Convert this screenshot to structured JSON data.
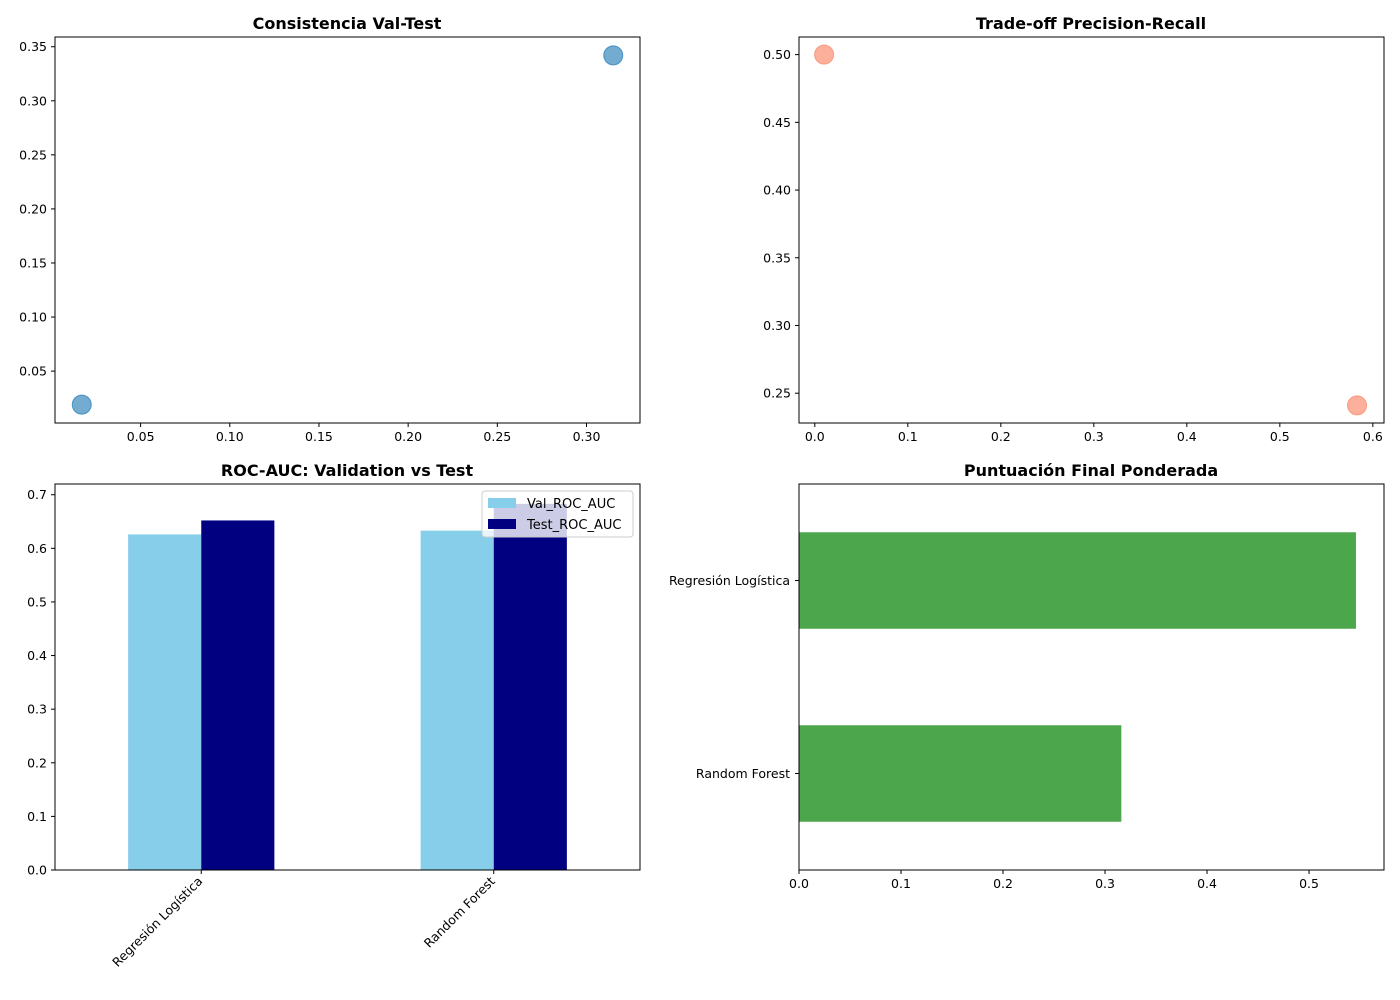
{
  "chart_data": [
    {
      "type": "scatter",
      "title": "Consistencia Val-Test",
      "xlabel": "",
      "ylabel": "",
      "xlim": [
        0.002,
        0.33
      ],
      "ylim": [
        0.002,
        0.359
      ],
      "xticks": [
        "0.05",
        "0.10",
        "0.15",
        "0.20",
        "0.25",
        "0.30"
      ],
      "xtick_values": [
        0.05,
        0.1,
        0.15,
        0.2,
        0.25,
        0.3
      ],
      "yticks": [
        "0.05",
        "0.10",
        "0.15",
        "0.20",
        "0.25",
        "0.30",
        "0.35"
      ],
      "ytick_values": [
        0.05,
        0.1,
        0.15,
        0.2,
        0.25,
        0.3,
        0.35
      ],
      "points": [
        {
          "x": 0.017,
          "y": 0.019
        },
        {
          "x": 0.315,
          "y": 0.342
        }
      ],
      "color": "#1f77b4",
      "grid": false
    },
    {
      "type": "scatter",
      "title": "Trade-off Precision-Recall",
      "xlabel": "",
      "ylabel": "",
      "xlim": [
        -0.017,
        0.612
      ],
      "ylim": [
        0.228,
        0.513
      ],
      "xticks": [
        "0.0",
        "0.1",
        "0.2",
        "0.3",
        "0.4",
        "0.5",
        "0.6"
      ],
      "xtick_values": [
        0.0,
        0.1,
        0.2,
        0.3,
        0.4,
        0.5,
        0.6
      ],
      "yticks": [
        "0.25",
        "0.30",
        "0.35",
        "0.40",
        "0.45",
        "0.50"
      ],
      "ytick_values": [
        0.25,
        0.3,
        0.35,
        0.4,
        0.45,
        0.5
      ],
      "points": [
        {
          "x": 0.01,
          "y": 0.5
        },
        {
          "x": 0.583,
          "y": 0.241
        }
      ],
      "color": "#fa8060",
      "grid": false
    },
    {
      "type": "bar",
      "title": "ROC-AUC: Validation vs Test",
      "xlabel": "",
      "ylabel": "",
      "categories": [
        "Regresión Logística",
        "Random Forest"
      ],
      "series": [
        {
          "name": "Val_ROC_AUC",
          "values": [
            0.626,
            0.633
          ],
          "color": "#87ceeb"
        },
        {
          "name": "Test_ROC_AUC",
          "values": [
            0.652,
            0.683
          ],
          "color": "#000080"
        }
      ],
      "ylim": [
        0,
        0.72
      ],
      "yticks": [
        "0.0",
        "0.1",
        "0.2",
        "0.3",
        "0.4",
        "0.5",
        "0.6",
        "0.7"
      ],
      "ytick_values": [
        0,
        0.1,
        0.2,
        0.3,
        0.4,
        0.5,
        0.6,
        0.7
      ],
      "legend": "top-right",
      "grid": false
    },
    {
      "type": "bar",
      "orientation": "horizontal",
      "title": "Puntuación Final Ponderada",
      "xlabel": "",
      "ylabel": "",
      "categories": [
        "Regresión Logística",
        "Random Forest"
      ],
      "values": [
        0.546,
        0.316
      ],
      "color": "#4ca64c",
      "xlim": [
        0,
        0.5735
      ],
      "xticks": [
        "0.0",
        "0.1",
        "0.2",
        "0.3",
        "0.4",
        "0.5"
      ],
      "xtick_values": [
        0,
        0.1,
        0.2,
        0.3,
        0.4,
        0.5
      ],
      "grid": false
    }
  ]
}
